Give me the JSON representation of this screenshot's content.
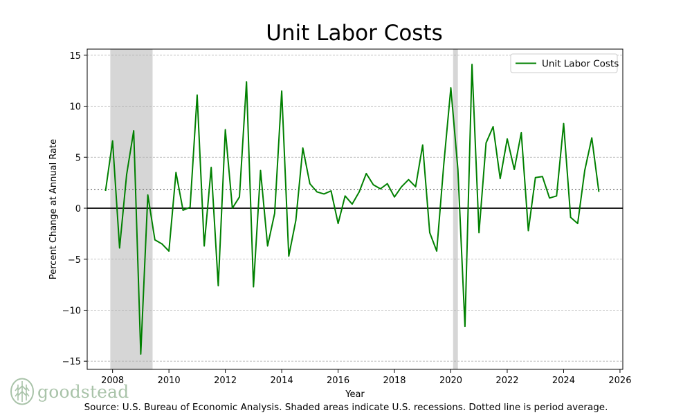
{
  "chart_data": {
    "type": "line",
    "title": "Unit Labor Costs",
    "xlabel": "Year",
    "ylabel": "Percent Change at Annual Rate",
    "xlim": [
      2007.1,
      2026.1
    ],
    "ylim": [
      -15.8,
      15.6
    ],
    "xticks": [
      2008,
      2010,
      2012,
      2014,
      2016,
      2018,
      2020,
      2022,
      2024,
      2026
    ],
    "yticks": [
      -15,
      -10,
      -5,
      0,
      5,
      10,
      15
    ],
    "ytick_labels": [
      "−15",
      "−10",
      "−5",
      "0",
      "5",
      "10",
      "15"
    ],
    "grid": true,
    "legend": "top-right",
    "period_average": 1.85,
    "recessions": [
      [
        2007.92,
        2009.42
      ],
      [
        2020.08,
        2020.25
      ]
    ],
    "series": [
      {
        "name": "Unit Labor Costs",
        "color": "#008000",
        "x": [
          2007.75,
          2008.0,
          2008.25,
          2008.5,
          2008.75,
          2009.0,
          2009.25,
          2009.5,
          2009.75,
          2010.0,
          2010.25,
          2010.5,
          2010.75,
          2011.0,
          2011.25,
          2011.5,
          2011.75,
          2012.0,
          2012.25,
          2012.5,
          2012.75,
          2013.0,
          2013.25,
          2013.5,
          2013.75,
          2014.0,
          2014.25,
          2014.5,
          2014.75,
          2015.0,
          2015.25,
          2015.5,
          2015.75,
          2016.0,
          2016.25,
          2016.5,
          2016.75,
          2017.0,
          2017.25,
          2017.5,
          2017.75,
          2018.0,
          2018.25,
          2018.5,
          2018.75,
          2019.0,
          2019.25,
          2019.5,
          2019.75,
          2020.0,
          2020.25,
          2020.5,
          2020.75,
          2021.0,
          2021.25,
          2021.5,
          2021.75,
          2022.0,
          2022.25,
          2022.5,
          2022.75,
          2023.0,
          2023.25,
          2023.5,
          2023.75,
          2024.0,
          2024.25,
          2024.5,
          2024.75,
          2025.0,
          2025.25
        ],
        "values": [
          1.7,
          6.6,
          -3.9,
          3.3,
          7.6,
          -14.3,
          1.3,
          -3.1,
          -3.5,
          -4.2,
          3.5,
          -0.2,
          0.1,
          11.1,
          -3.7,
          4.0,
          -7.6,
          7.7,
          0.0,
          1.1,
          12.4,
          -7.7,
          3.7,
          -3.7,
          -0.5,
          11.5,
          -4.7,
          -1.2,
          5.9,
          2.4,
          1.6,
          1.4,
          1.7,
          -1.5,
          1.2,
          0.4,
          1.6,
          3.4,
          2.3,
          1.9,
          2.4,
          1.1,
          2.1,
          2.8,
          2.1,
          6.2,
          -2.4,
          -4.2,
          4.3,
          11.8,
          3.8,
          -11.6,
          14.1,
          -2.4,
          6.4,
          8.0,
          2.9,
          6.8,
          3.8,
          7.4,
          -2.2,
          3.0,
          3.1,
          1.0,
          1.2,
          8.3,
          -0.9,
          -1.5,
          3.7,
          6.9,
          1.6
        ]
      }
    ]
  },
  "footer": {
    "source": "Source: U.S. Bureau of Economic Analysis. Shaded areas indicate U.S. recessions. Dotted line is period average.",
    "logo_text": "goodstead"
  }
}
